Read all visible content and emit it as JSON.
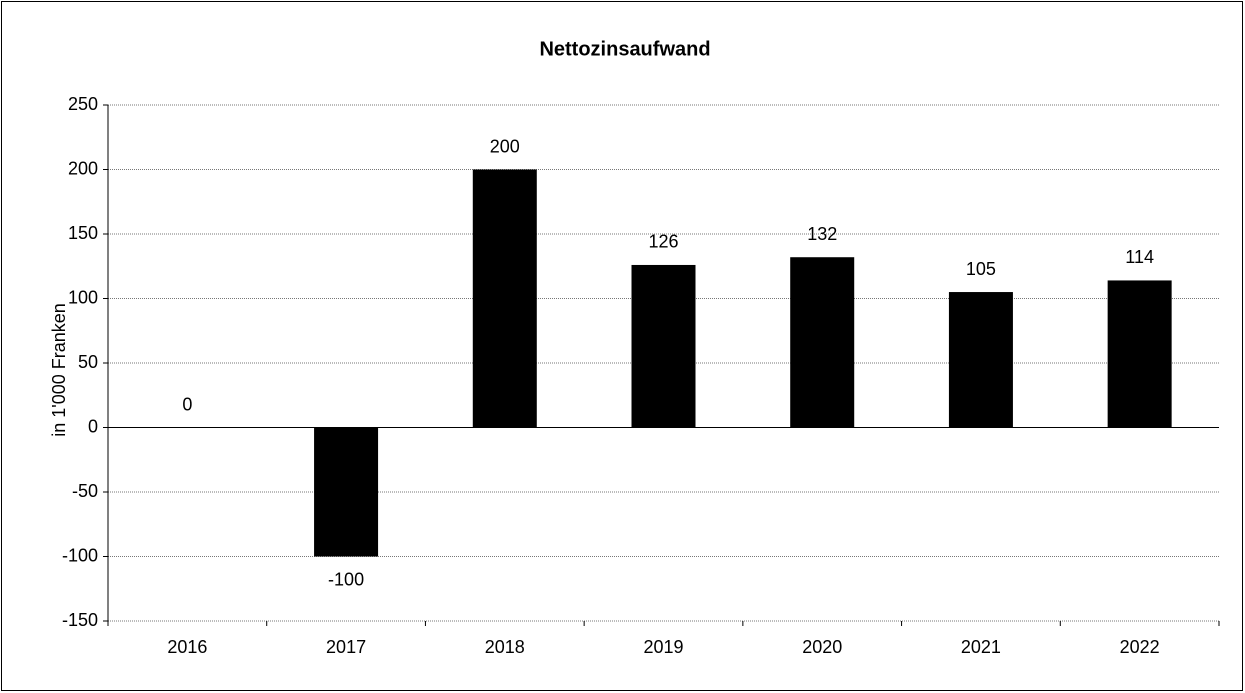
{
  "chart_data": {
    "type": "bar",
    "title": "Nettozinsaufwand",
    "y_label": "in 1'000 Franken",
    "categories": [
      "2016",
      "2017",
      "2018",
      "2019",
      "2020",
      "2021",
      "2022"
    ],
    "values": [
      0,
      -100,
      200,
      126,
      132,
      105,
      114
    ],
    "color": "#000000",
    "ylim": [
      -150,
      250
    ],
    "yticks": [
      -150,
      -100,
      -50,
      0,
      50,
      100,
      150,
      200,
      250
    ],
    "grid": true
  }
}
